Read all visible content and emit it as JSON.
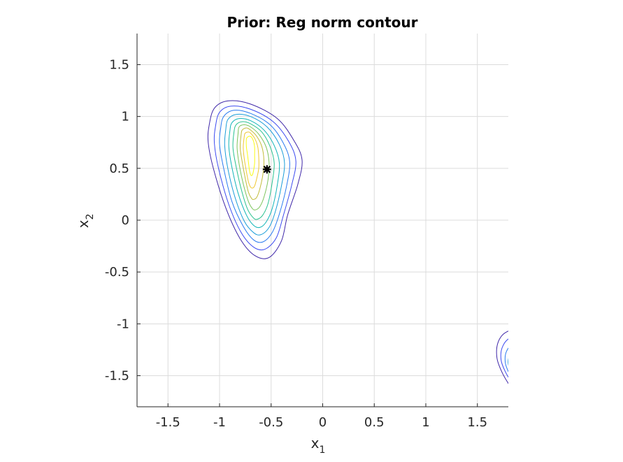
{
  "chart_data": {
    "type": "contour",
    "title": "Prior: Reg norm contour",
    "xlabel": "x",
    "xlabel_sub": "1",
    "ylabel": "x",
    "ylabel_sub": "2",
    "xlim": [
      -1.8,
      1.8
    ],
    "ylim": [
      -1.8,
      1.8
    ],
    "xticks": [
      -1.5,
      -1,
      -0.5,
      0,
      0.5,
      1,
      1.5
    ],
    "yticks": [
      -1.5,
      -1,
      -0.5,
      0,
      0.5,
      1,
      1.5
    ],
    "xtick_labels": [
      "-1.5",
      "-1",
      "-0.5",
      "0",
      "0.5",
      "1",
      "1.5"
    ],
    "ytick_labels": [
      "-1.5",
      "-1",
      "-0.5",
      "0",
      "0.5",
      "1",
      "1.5"
    ],
    "grid": true,
    "colormap": [
      "#3e26a8",
      "#3c4bf0",
      "#2a7bf0",
      "#1a9dd8",
      "#12b5b8",
      "#2ac290",
      "#7cc45c",
      "#c2bc3a",
      "#f0c832",
      "#f9fb14"
    ],
    "contour_groups": [
      {
        "name": "upper-left-peak",
        "center": [
          -0.72,
          0.67
        ],
        "levels": [
          {
            "color": "#3e26a8",
            "points": [
              [
                -1.1,
                0.92
              ],
              [
                -1.05,
                1.08
              ],
              [
                -0.92,
                1.15
              ],
              [
                -0.7,
                1.12
              ],
              [
                -0.44,
                0.98
              ],
              [
                -0.28,
                0.77
              ],
              [
                -0.2,
                0.58
              ],
              [
                -0.24,
                0.35
              ],
              [
                -0.34,
                0.05
              ],
              [
                -0.4,
                -0.2
              ],
              [
                -0.52,
                -0.36
              ],
              [
                -0.66,
                -0.34
              ],
              [
                -0.8,
                -0.18
              ],
              [
                -0.94,
                0.12
              ],
              [
                -1.06,
                0.5
              ],
              [
                -1.11,
                0.75
              ]
            ]
          },
          {
            "color": "#3c4bf0",
            "points": [
              [
                -1.04,
                0.9
              ],
              [
                -1.0,
                1.04
              ],
              [
                -0.89,
                1.1
              ],
              [
                -0.7,
                1.07
              ],
              [
                -0.48,
                0.95
              ],
              [
                -0.33,
                0.76
              ],
              [
                -0.26,
                0.57
              ],
              [
                -0.3,
                0.34
              ],
              [
                -0.38,
                0.05
              ],
              [
                -0.45,
                -0.17
              ],
              [
                -0.56,
                -0.28
              ],
              [
                -0.67,
                -0.26
              ],
              [
                -0.79,
                -0.12
              ],
              [
                -0.91,
                0.15
              ],
              [
                -1.01,
                0.5
              ],
              [
                -1.05,
                0.74
              ]
            ]
          },
          {
            "color": "#2a7bf0",
            "points": [
              [
                -0.99,
                0.88
              ],
              [
                -0.96,
                1.0
              ],
              [
                -0.86,
                1.06
              ],
              [
                -0.7,
                1.03
              ],
              [
                -0.51,
                0.92
              ],
              [
                -0.38,
                0.74
              ],
              [
                -0.32,
                0.56
              ],
              [
                -0.35,
                0.33
              ],
              [
                -0.42,
                0.06
              ],
              [
                -0.49,
                -0.12
              ],
              [
                -0.58,
                -0.21
              ],
              [
                -0.67,
                -0.19
              ],
              [
                -0.77,
                -0.06
              ],
              [
                -0.88,
                0.18
              ],
              [
                -0.96,
                0.5
              ],
              [
                -1.0,
                0.73
              ]
            ]
          },
          {
            "color": "#1a9dd8",
            "points": [
              [
                -0.94,
                0.87
              ],
              [
                -0.92,
                0.97
              ],
              [
                -0.84,
                1.02
              ],
              [
                -0.7,
                1.0
              ],
              [
                -0.54,
                0.9
              ],
              [
                -0.42,
                0.73
              ],
              [
                -0.37,
                0.55
              ],
              [
                -0.4,
                0.33
              ],
              [
                -0.46,
                0.08
              ],
              [
                -0.52,
                -0.07
              ],
              [
                -0.6,
                -0.14
              ],
              [
                -0.67,
                -0.12
              ],
              [
                -0.76,
                -0.01
              ],
              [
                -0.85,
                0.22
              ],
              [
                -0.92,
                0.5
              ],
              [
                -0.95,
                0.72
              ]
            ]
          },
          {
            "color": "#12b5b8",
            "points": [
              [
                -0.9,
                0.86
              ],
              [
                -0.88,
                0.94
              ],
              [
                -0.81,
                0.98
              ],
              [
                -0.7,
                0.96
              ],
              [
                -0.57,
                0.87
              ],
              [
                -0.47,
                0.72
              ],
              [
                -0.42,
                0.55
              ],
              [
                -0.44,
                0.34
              ],
              [
                -0.49,
                0.11
              ],
              [
                -0.55,
                -0.02
              ],
              [
                -0.61,
                -0.07
              ],
              [
                -0.67,
                -0.05
              ],
              [
                -0.74,
                0.05
              ],
              [
                -0.82,
                0.26
              ],
              [
                -0.88,
                0.51
              ],
              [
                -0.91,
                0.71
              ]
            ]
          },
          {
            "color": "#2ac290",
            "points": [
              [
                -0.86,
                0.85
              ],
              [
                -0.84,
                0.92
              ],
              [
                -0.78,
                0.95
              ],
              [
                -0.7,
                0.93
              ],
              [
                -0.59,
                0.85
              ],
              [
                -0.51,
                0.71
              ],
              [
                -0.47,
                0.55
              ],
              [
                -0.49,
                0.36
              ],
              [
                -0.53,
                0.16
              ],
              [
                -0.58,
                0.05
              ],
              [
                -0.63,
                0.01
              ],
              [
                -0.67,
                0.02
              ],
              [
                -0.73,
                0.11
              ],
              [
                -0.79,
                0.3
              ],
              [
                -0.84,
                0.52
              ],
              [
                -0.87,
                0.7
              ]
            ]
          },
          {
            "color": "#7cc45c",
            "points": [
              [
                -0.82,
                0.84
              ],
              [
                -0.81,
                0.9
              ],
              [
                -0.76,
                0.92
              ],
              [
                -0.7,
                0.9
              ],
              [
                -0.62,
                0.83
              ],
              [
                -0.55,
                0.71
              ],
              [
                -0.52,
                0.56
              ],
              [
                -0.53,
                0.39
              ],
              [
                -0.57,
                0.22
              ],
              [
                -0.61,
                0.13
              ],
              [
                -0.65,
                0.1
              ],
              [
                -0.68,
                0.11
              ],
              [
                -0.72,
                0.18
              ],
              [
                -0.77,
                0.35
              ],
              [
                -0.81,
                0.54
              ],
              [
                -0.83,
                0.7
              ]
            ]
          },
          {
            "color": "#c2bc3a",
            "points": [
              [
                -0.79,
                0.83
              ],
              [
                -0.78,
                0.87
              ],
              [
                -0.74,
                0.89
              ],
              [
                -0.7,
                0.87
              ],
              [
                -0.64,
                0.81
              ],
              [
                -0.59,
                0.71
              ],
              [
                -0.57,
                0.58
              ],
              [
                -0.58,
                0.44
              ],
              [
                -0.61,
                0.3
              ],
              [
                -0.64,
                0.22
              ],
              [
                -0.67,
                0.2
              ],
              [
                -0.69,
                0.21
              ],
              [
                -0.72,
                0.27
              ],
              [
                -0.75,
                0.4
              ],
              [
                -0.78,
                0.56
              ],
              [
                -0.8,
                0.7
              ]
            ]
          },
          {
            "color": "#f0c832",
            "points": [
              [
                -0.76,
                0.81
              ],
              [
                -0.75,
                0.84
              ],
              [
                -0.72,
                0.85
              ],
              [
                -0.7,
                0.84
              ],
              [
                -0.66,
                0.79
              ],
              [
                -0.63,
                0.71
              ],
              [
                -0.62,
                0.61
              ],
              [
                -0.62,
                0.5
              ],
              [
                -0.64,
                0.4
              ],
              [
                -0.66,
                0.33
              ],
              [
                -0.68,
                0.31
              ],
              [
                -0.7,
                0.32
              ],
              [
                -0.72,
                0.37
              ],
              [
                -0.74,
                0.47
              ],
              [
                -0.76,
                0.59
              ],
              [
                -0.77,
                0.7
              ]
            ]
          },
          {
            "color": "#f9fb14",
            "points": [
              [
                -0.74,
                0.78
              ],
              [
                -0.73,
                0.8
              ],
              [
                -0.71,
                0.81
              ],
              [
                -0.69,
                0.8
              ],
              [
                -0.67,
                0.76
              ],
              [
                -0.66,
                0.7
              ],
              [
                -0.66,
                0.63
              ],
              [
                -0.66,
                0.55
              ],
              [
                -0.67,
                0.48
              ],
              [
                -0.68,
                0.44
              ],
              [
                -0.69,
                0.43
              ],
              [
                -0.7,
                0.44
              ],
              [
                -0.71,
                0.48
              ],
              [
                -0.72,
                0.56
              ],
              [
                -0.73,
                0.64
              ],
              [
                -0.74,
                0.71
              ]
            ]
          }
        ]
      },
      {
        "name": "lower-right-peak",
        "center": [
          1.86,
          -1.42
        ],
        "levels": [
          {
            "color": "#3e26a8",
            "points": [
              [
                1.95,
                -1.05
              ],
              [
                1.78,
                -1.08
              ],
              [
                1.7,
                -1.18
              ],
              [
                1.69,
                -1.33
              ],
              [
                1.74,
                -1.47
              ],
              [
                1.81,
                -1.59
              ],
              [
                1.89,
                -1.7
              ],
              [
                1.96,
                -1.74
              ],
              [
                2.05,
                -1.6
              ],
              [
                2.08,
                -1.3
              ]
            ]
          },
          {
            "color": "#3c4bf0",
            "points": [
              [
                1.95,
                -1.12
              ],
              [
                1.81,
                -1.14
              ],
              [
                1.74,
                -1.23
              ],
              [
                1.73,
                -1.35
              ],
              [
                1.77,
                -1.46
              ],
              [
                1.83,
                -1.56
              ],
              [
                1.9,
                -1.65
              ],
              [
                1.96,
                -1.68
              ],
              [
                2.03,
                -1.56
              ],
              [
                2.05,
                -1.32
              ]
            ]
          },
          {
            "color": "#2a7bf0",
            "points": [
              [
                1.95,
                -1.18
              ],
              [
                1.84,
                -1.2
              ],
              [
                1.78,
                -1.27
              ],
              [
                1.77,
                -1.37
              ],
              [
                1.8,
                -1.46
              ],
              [
                1.85,
                -1.54
              ],
              [
                1.91,
                -1.61
              ],
              [
                1.95,
                -1.63
              ],
              [
                2.01,
                -1.53
              ],
              [
                2.03,
                -1.34
              ]
            ]
          },
          {
            "color": "#1a9dd8",
            "points": [
              [
                1.94,
                -1.24
              ],
              [
                1.86,
                -1.25
              ],
              [
                1.81,
                -1.31
              ],
              [
                1.8,
                -1.39
              ],
              [
                1.83,
                -1.46
              ],
              [
                1.87,
                -1.52
              ],
              [
                1.91,
                -1.57
              ],
              [
                1.95,
                -1.58
              ],
              [
                1.99,
                -1.5
              ],
              [
                2.0,
                -1.35
              ]
            ]
          },
          {
            "color": "#12b5b8",
            "points": [
              [
                1.93,
                -1.3
              ],
              [
                1.88,
                -1.31
              ],
              [
                1.84,
                -1.35
              ],
              [
                1.83,
                -1.41
              ],
              [
                1.85,
                -1.46
              ],
              [
                1.88,
                -1.5
              ],
              [
                1.92,
                -1.53
              ],
              [
                1.94,
                -1.53
              ],
              [
                1.97,
                -1.47
              ],
              [
                1.97,
                -1.37
              ]
            ]
          },
          {
            "color": "#2ac290",
            "points": [
              [
                1.92,
                -1.35
              ],
              [
                1.89,
                -1.36
              ],
              [
                1.87,
                -1.39
              ],
              [
                1.86,
                -1.42
              ],
              [
                1.88,
                -1.46
              ],
              [
                1.9,
                -1.48
              ],
              [
                1.92,
                -1.49
              ],
              [
                1.94,
                -1.49
              ],
              [
                1.95,
                -1.45
              ],
              [
                1.95,
                -1.39
              ]
            ]
          }
        ]
      }
    ],
    "marker": {
      "x": -0.54,
      "y": 0.49,
      "color": "#000000"
    }
  }
}
